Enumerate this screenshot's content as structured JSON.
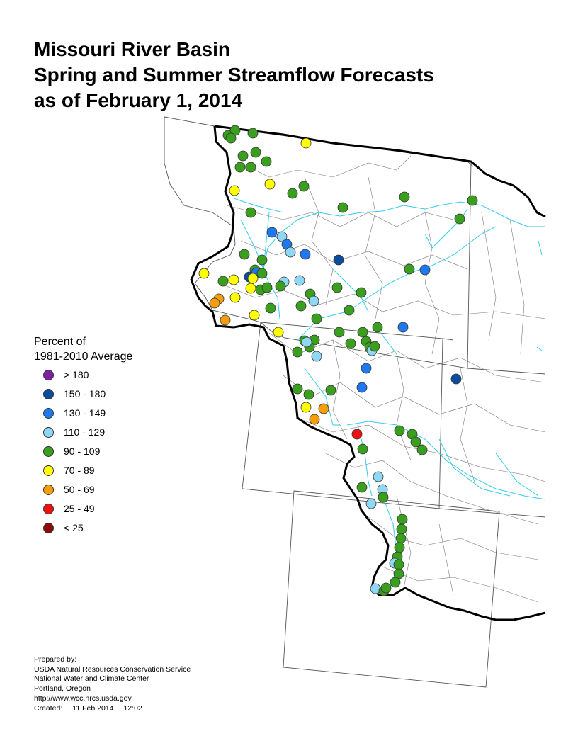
{
  "title": {
    "line1": "Missouri River Basin",
    "line2": "Spring and Summer Streamflow Forecasts",
    "line3": "as of February 1, 2014"
  },
  "legend": {
    "title_line1": "Percent of",
    "title_line2": "1981-2010 Average",
    "classes": [
      {
        "label": "> 180",
        "color": "#7f1fa6",
        "key": "gt180"
      },
      {
        "label": "150 - 180",
        "color": "#0b4c9e",
        "key": "c150"
      },
      {
        "label": "130 - 149",
        "color": "#1f78f0",
        "key": "c130"
      },
      {
        "label": "110 - 129",
        "color": "#8fd8f5",
        "key": "c110"
      },
      {
        "label": "90 - 109",
        "color": "#3a9e1e",
        "key": "c90"
      },
      {
        "label": "70 - 89",
        "color": "#ffff00",
        "key": "c70"
      },
      {
        "label": "50 - 69",
        "color": "#f59e0b",
        "key": "c50"
      },
      {
        "label": "25 - 49",
        "color": "#ee1111",
        "key": "c25"
      },
      {
        "label": "< 25",
        "color": "#8b0a0a",
        "key": "lt25"
      }
    ]
  },
  "stations_by_class": {
    "gt180": 0,
    "c150": 2,
    "c130": 8,
    "c110": 16,
    "c90": 83,
    "c70": 13,
    "c50": 6,
    "c25": 1,
    "lt25": 0
  },
  "credits": {
    "prepared_by": "Prepared by:",
    "agency": "USDA Natural Resources Conservation Service",
    "center": "National Water and Climate Center",
    "location": "Portland, Oregon",
    "url": "http://www.wcc.nrcs.usda.gov",
    "created_label": "Created:",
    "created_date": "11 Feb 2014",
    "created_time": "12:02"
  }
}
